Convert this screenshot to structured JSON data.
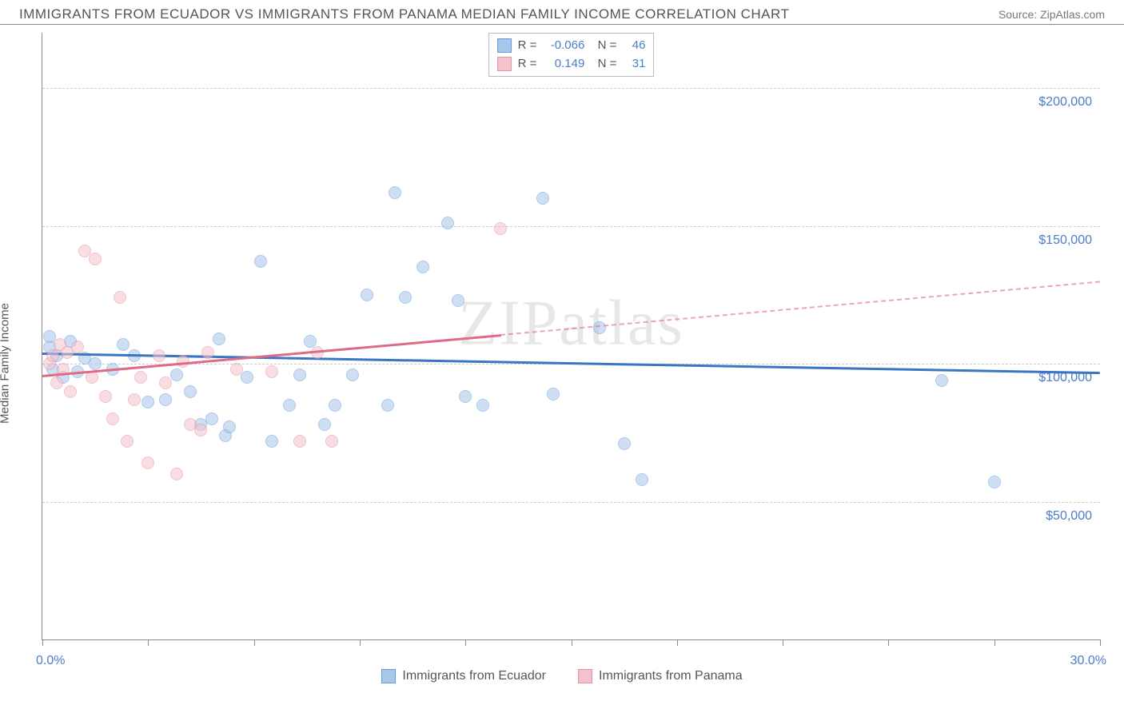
{
  "title": "IMMIGRANTS FROM ECUADOR VS IMMIGRANTS FROM PANAMA MEDIAN FAMILY INCOME CORRELATION CHART",
  "source": "Source: ZipAtlas.com",
  "ylabel": "Median Family Income",
  "watermark": "ZIPatlas",
  "chart": {
    "type": "scatter",
    "xlim": [
      0,
      30
    ],
    "ylim": [
      0,
      220000
    ],
    "x_tick_step": 3,
    "x_min_label": "0.0%",
    "x_max_label": "30.0%",
    "y_gridlines": [
      50000,
      100000,
      150000,
      200000
    ],
    "y_tick_labels": [
      "$50,000",
      "$100,000",
      "$150,000",
      "$200,000"
    ],
    "grid_color": "#cccccc",
    "axis_color": "#888888",
    "background_color": "#ffffff",
    "tick_label_color": "#4a7ec9",
    "point_radius": 8,
    "point_opacity": 0.55,
    "series": [
      {
        "name": "Immigrants from Ecuador",
        "color_fill": "#a9c6eb",
        "color_stroke": "#6a9bd8",
        "line_color": "#3a76c4",
        "line_dash": "solid",
        "line_width": 2.5,
        "R": "-0.066",
        "N": "46",
        "trend": {
          "x1": 0,
          "y1": 104000,
          "x2": 30,
          "y2": 97000
        },
        "points": [
          [
            0.2,
            106000
          ],
          [
            0.2,
            110000
          ],
          [
            0.3,
            98000
          ],
          [
            0.4,
            103000
          ],
          [
            0.6,
            95000
          ],
          [
            0.8,
            108000
          ],
          [
            1.0,
            97000
          ],
          [
            1.2,
            102000
          ],
          [
            1.5,
            100000
          ],
          [
            2.0,
            98000
          ],
          [
            2.3,
            107000
          ],
          [
            2.6,
            103000
          ],
          [
            3.0,
            86000
          ],
          [
            3.5,
            87000
          ],
          [
            3.8,
            96000
          ],
          [
            4.2,
            90000
          ],
          [
            4.5,
            78000
          ],
          [
            5.0,
            109000
          ],
          [
            5.2,
            74000
          ],
          [
            5.3,
            77000
          ],
          [
            5.8,
            95000
          ],
          [
            6.2,
            137000
          ],
          [
            6.5,
            72000
          ],
          [
            7.0,
            85000
          ],
          [
            7.3,
            96000
          ],
          [
            7.6,
            108000
          ],
          [
            8.0,
            78000
          ],
          [
            8.3,
            85000
          ],
          [
            8.8,
            96000
          ],
          [
            9.2,
            125000
          ],
          [
            9.8,
            85000
          ],
          [
            10.0,
            162000
          ],
          [
            10.3,
            124000
          ],
          [
            10.8,
            135000
          ],
          [
            11.5,
            151000
          ],
          [
            11.8,
            123000
          ],
          [
            12.0,
            88000
          ],
          [
            12.5,
            85000
          ],
          [
            14.2,
            160000
          ],
          [
            14.5,
            89000
          ],
          [
            15.8,
            113000
          ],
          [
            16.5,
            71000
          ],
          [
            17.0,
            58000
          ],
          [
            25.5,
            94000
          ],
          [
            27.0,
            57000
          ],
          [
            4.8,
            80000
          ]
        ]
      },
      {
        "name": "Immigrants from Panama",
        "color_fill": "#f4c2cd",
        "color_stroke": "#e890a4",
        "line_color": "#e06b87",
        "line_dash_solid_until_x": 13,
        "line_width": 2.5,
        "R": "0.149",
        "N": "31",
        "trend": {
          "x1": 0,
          "y1": 96000,
          "x2": 30,
          "y2": 130000
        },
        "points": [
          [
            0.2,
            100000
          ],
          [
            0.3,
            103000
          ],
          [
            0.4,
            93000
          ],
          [
            0.5,
            107000
          ],
          [
            0.6,
            98000
          ],
          [
            0.7,
            104000
          ],
          [
            0.8,
            90000
          ],
          [
            1.0,
            106000
          ],
          [
            1.2,
            141000
          ],
          [
            1.4,
            95000
          ],
          [
            1.5,
            138000
          ],
          [
            1.8,
            88000
          ],
          [
            2.0,
            80000
          ],
          [
            2.2,
            124000
          ],
          [
            2.4,
            72000
          ],
          [
            2.6,
            87000
          ],
          [
            2.8,
            95000
          ],
          [
            3.0,
            64000
          ],
          [
            3.3,
            103000
          ],
          [
            3.5,
            93000
          ],
          [
            3.8,
            60000
          ],
          [
            4.0,
            101000
          ],
          [
            4.2,
            78000
          ],
          [
            4.5,
            76000
          ],
          [
            4.7,
            104000
          ],
          [
            5.5,
            98000
          ],
          [
            6.5,
            97000
          ],
          [
            7.3,
            72000
          ],
          [
            7.8,
            104000
          ],
          [
            8.2,
            72000
          ],
          [
            13.0,
            149000
          ]
        ]
      }
    ]
  },
  "legend": {
    "items": [
      {
        "label": "Immigrants from Ecuador",
        "fill": "#a9c6eb",
        "stroke": "#6a9bd8"
      },
      {
        "label": "Immigrants from Panama",
        "fill": "#f4c2cd",
        "stroke": "#e890a4"
      }
    ]
  }
}
